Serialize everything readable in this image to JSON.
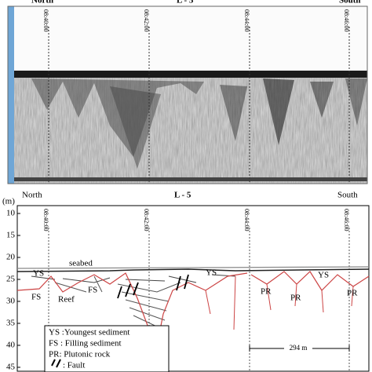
{
  "header": {
    "north": "North",
    "title": "L - 5",
    "south": "South",
    "unit": "(m)"
  },
  "times": [
    "08:40:00",
    "08:42:00",
    "08:44:00",
    "08:46:00"
  ],
  "depths": [
    "10",
    "15",
    "20",
    "25",
    "30",
    "35",
    "40",
    "45"
  ],
  "seabed": "seabed",
  "units": [
    "YS",
    "FS",
    "Reef",
    "FS",
    "YS",
    "PR",
    "PR",
    "YS",
    "PR"
  ],
  "scale": "294 m",
  "legend": [
    "YS :Youngest sediment",
    "FS : Filling sediment",
    "PR: Plutonic rock",
    ": Fault"
  ]
}
